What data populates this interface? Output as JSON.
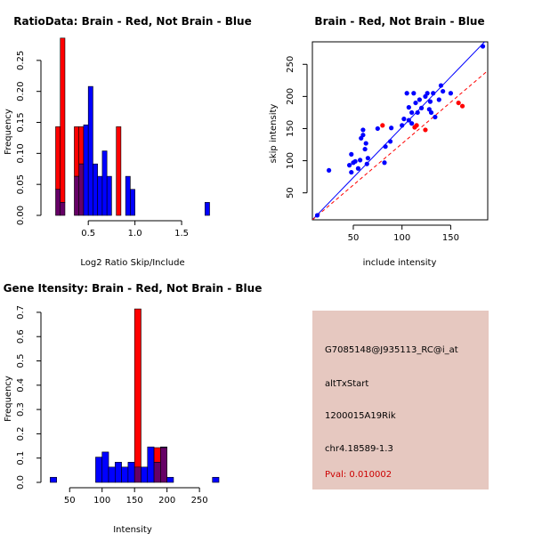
{
  "chart_data": [
    {
      "type": "histogram",
      "title": "RatioData: Brain - Red, Not Brain - Blue",
      "xlabel": "Log2 Ratio Skip/Include",
      "ylabel": "Frequency",
      "xlim": [
        0.05,
        1.9
      ],
      "ylim": [
        0,
        0.29
      ],
      "xticks": [
        "0.5",
        "1.0",
        "1.5"
      ],
      "xtick_values": [
        0.5,
        1.0,
        1.5
      ],
      "yticks": [
        "0.00",
        "0.05",
        "0.10",
        "0.15",
        "0.20",
        "0.25"
      ],
      "ytick_values": [
        0,
        0.05,
        0.1,
        0.15,
        0.2,
        0.25
      ],
      "bins": [
        0.15,
        0.2,
        0.25,
        0.3,
        0.35,
        0.4,
        0.45,
        0.5,
        0.55,
        0.6,
        0.65,
        0.7,
        0.75,
        0.8,
        0.85,
        0.9,
        0.95,
        1.0,
        1.05,
        1.1,
        1.15,
        1.2,
        1.25,
        1.3,
        1.35,
        1.4,
        1.45,
        1.5,
        1.55,
        1.6,
        1.65,
        1.7,
        1.75,
        1.8,
        1.85
      ],
      "series": [
        {
          "name": "Brain",
          "color": "#ff0000",
          "values": [
            0.143,
            0.286,
            0,
            0,
            0.143,
            0.143,
            0,
            0,
            0,
            0,
            0,
            0,
            0,
            0.143,
            0,
            0,
            0,
            0,
            0,
            0,
            0,
            0,
            0,
            0,
            0,
            0,
            0,
            0,
            0,
            0,
            0,
            0,
            0,
            0
          ]
        },
        {
          "name": "Not Brain",
          "color": "#0000ff",
          "values": [
            0.042,
            0.021,
            0,
            0,
            0.063,
            0.083,
            0.146,
            0.208,
            0.083,
            0.063,
            0.104,
            0.063,
            0,
            0,
            0,
            0.063,
            0.042,
            0,
            0,
            0,
            0,
            0,
            0,
            0,
            0,
            0,
            0,
            0,
            0,
            0,
            0,
            0,
            0.021,
            0
          ]
        }
      ],
      "overlap_color": "#660066"
    },
    {
      "type": "scatter",
      "title": "Brain - Red, Not Brain - Blue",
      "xlabel": "include intensity",
      "ylabel": "skip intensity",
      "xlim": [
        8,
        188
      ],
      "ylim": [
        8,
        285
      ],
      "xticks": [
        "50",
        "100",
        "150"
      ],
      "xtick_values": [
        50,
        100,
        150
      ],
      "yticks": [
        "50",
        "100",
        "150",
        "200",
        "250"
      ],
      "ytick_values": [
        50,
        100,
        150,
        200,
        250
      ],
      "series": [
        {
          "name": "Not Brain",
          "color": "#0000ff",
          "points": [
            [
              13,
              15
            ],
            [
              25,
              85
            ],
            [
              46,
              93
            ],
            [
              48,
              82
            ],
            [
              48,
              110
            ],
            [
              50,
              97
            ],
            [
              52,
              99
            ],
            [
              55,
              88
            ],
            [
              57,
              101
            ],
            [
              58,
              135
            ],
            [
              60,
              140
            ],
            [
              60,
              148
            ],
            [
              62,
              118
            ],
            [
              63,
              127
            ],
            [
              64,
              95
            ],
            [
              65,
              104
            ],
            [
              75,
              150
            ],
            [
              82,
              97
            ],
            [
              83,
              122
            ],
            [
              88,
              130
            ],
            [
              89,
              151
            ],
            [
              100,
              155
            ],
            [
              102,
              165
            ],
            [
              105,
              205
            ],
            [
              107,
              163
            ],
            [
              107,
              183
            ],
            [
              110,
              158
            ],
            [
              110,
              175
            ],
            [
              112,
              205
            ],
            [
              114,
              190
            ],
            [
              116,
              175
            ],
            [
              118,
              195
            ],
            [
              120,
              182
            ],
            [
              124,
              200
            ],
            [
              126,
              205
            ],
            [
              128,
              180
            ],
            [
              129,
              192
            ],
            [
              130,
              175
            ],
            [
              132,
              205
            ],
            [
              134,
              168
            ],
            [
              138,
              195
            ],
            [
              140,
              217
            ],
            [
              142,
              208
            ],
            [
              150,
              205
            ],
            [
              183,
              278
            ]
          ]
        },
        {
          "name": "Brain",
          "color": "#ff0000",
          "points": [
            [
              80,
              155
            ],
            [
              113,
              152
            ],
            [
              115,
              155
            ],
            [
              124,
              148
            ],
            [
              158,
              190
            ],
            [
              162,
              185
            ]
          ]
        }
      ],
      "lines": [
        {
          "color": "#0000ff",
          "from": [
            8,
            8
          ],
          "to": [
            188,
            290
          ]
        },
        {
          "color": "#ff0000",
          "style": "dashed",
          "from": [
            8,
            8
          ],
          "to": [
            188,
            240
          ]
        }
      ]
    },
    {
      "type": "histogram",
      "title": "Gene Itensity: Brain - Red, Not Brain - Blue",
      "xlabel": "Intensity",
      "ylabel": "Frequency",
      "xlim": [
        14,
        280
      ],
      "ylim": [
        0,
        0.74
      ],
      "xticks": [
        "50",
        "100",
        "150",
        "200",
        "250"
      ],
      "xtick_values": [
        50,
        100,
        150,
        200,
        250
      ],
      "yticks": [
        "0.0",
        "0.1",
        "0.2",
        "0.3",
        "0.4",
        "0.5",
        "0.6",
        "0.7"
      ],
      "ytick_values": [
        0,
        0.1,
        0.2,
        0.3,
        0.4,
        0.5,
        0.6,
        0.7
      ],
      "bins": [
        20,
        30,
        40,
        50,
        60,
        70,
        80,
        90,
        100,
        110,
        120,
        130,
        140,
        150,
        160,
        170,
        180,
        190,
        200,
        210,
        220,
        230,
        240,
        250,
        260,
        270,
        280
      ],
      "series": [
        {
          "name": "Brain",
          "color": "#ff0000",
          "values": [
            0,
            0,
            0,
            0,
            0,
            0,
            0,
            0,
            0,
            0,
            0,
            0,
            0,
            0.714,
            0,
            0,
            0.143,
            0.143,
            0,
            0,
            0,
            0,
            0,
            0,
            0,
            0
          ]
        },
        {
          "name": "Not Brain",
          "color": "#0000ff",
          "values": [
            0.021,
            0,
            0,
            0,
            0,
            0,
            0,
            0.104,
            0.125,
            0.063,
            0.083,
            0.063,
            0.083,
            0.063,
            0.063,
            0.146,
            0.083,
            0.146,
            0.021,
            0,
            0,
            0,
            0,
            0,
            0,
            0.021
          ]
        }
      ],
      "overlap_color": "#660066"
    }
  ],
  "info_panel": {
    "probe_id": "G7085148@J935113_RC@i_at",
    "event_type": "altTxStart",
    "gene": "1200015A19Rik",
    "location": "chr4.18589-1.3",
    "pval": "Pval: 0.010002",
    "background": "#e6c8c0",
    "pval_color": "#cc0000"
  }
}
